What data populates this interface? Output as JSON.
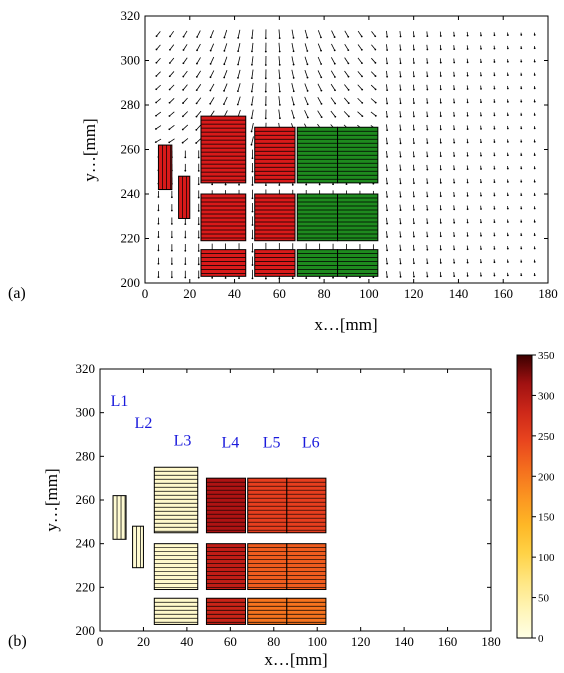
{
  "panels": {
    "a": "(a)",
    "b": "(b)"
  },
  "chart_data": [
    {
      "type": "quiver",
      "panel_label": "(a)",
      "xlabel": "x…[mm]",
      "ylabel": "y…[mm]",
      "xlim": [
        0,
        180
      ],
      "ylim": [
        200,
        320
      ],
      "xticks": [
        0,
        20,
        40,
        60,
        80,
        100,
        120,
        140,
        160,
        180
      ],
      "yticks": [
        200,
        220,
        240,
        260,
        280,
        300,
        320
      ],
      "grid": false,
      "block_colors": {
        "red": "#d91a1a",
        "green": "#1e8a1e"
      },
      "blocks": [
        {
          "x": [
            6,
            12
          ],
          "y": [
            242,
            262
          ],
          "group": "red"
        },
        {
          "x": [
            15,
            20
          ],
          "y": [
            229,
            248
          ],
          "group": "red"
        },
        {
          "x": [
            25,
            45
          ],
          "y": [
            203,
            215
          ],
          "group": "red"
        },
        {
          "x": [
            25,
            45
          ],
          "y": [
            219,
            240
          ],
          "group": "red"
        },
        {
          "x": [
            25,
            45
          ],
          "y": [
            245,
            275
          ],
          "group": "red"
        },
        {
          "x": [
            49,
            67
          ],
          "y": [
            203,
            215
          ],
          "group": "red"
        },
        {
          "x": [
            49,
            67
          ],
          "y": [
            219,
            240
          ],
          "group": "red"
        },
        {
          "x": [
            49,
            67
          ],
          "y": [
            245,
            270
          ],
          "group": "red"
        },
        {
          "x": [
            68,
            86
          ],
          "y": [
            203,
            215
          ],
          "group": "green"
        },
        {
          "x": [
            68,
            86
          ],
          "y": [
            219,
            240
          ],
          "group": "green"
        },
        {
          "x": [
            68,
            86
          ],
          "y": [
            245,
            270
          ],
          "group": "green"
        },
        {
          "x": [
            86,
            104
          ],
          "y": [
            203,
            215
          ],
          "group": "green"
        },
        {
          "x": [
            86,
            104
          ],
          "y": [
            219,
            240
          ],
          "group": "green"
        },
        {
          "x": [
            86,
            104
          ],
          "y": [
            245,
            270
          ],
          "group": "green"
        }
      ]
    },
    {
      "type": "heatmap",
      "panel_label": "(b)",
      "xlabel": "x…[mm]",
      "ylabel": "y…[mm]",
      "xlim": [
        0,
        180
      ],
      "ylim": [
        200,
        320
      ],
      "xticks": [
        0,
        20,
        40,
        60,
        80,
        100,
        120,
        140,
        160,
        180
      ],
      "yticks": [
        200,
        220,
        240,
        260,
        280,
        300,
        320
      ],
      "grid": false,
      "colorbar": {
        "range": [
          0,
          350
        ],
        "ticks": [
          0,
          50,
          100,
          150,
          200,
          250,
          300,
          350
        ]
      },
      "layer_labels": [
        {
          "text": "L1",
          "x": 9,
          "y": 303
        },
        {
          "text": "L2",
          "x": 20,
          "y": 293
        },
        {
          "text": "L3",
          "x": 38,
          "y": 285
        },
        {
          "text": "L4",
          "x": 60,
          "y": 284
        },
        {
          "text": "L5",
          "x": 79,
          "y": 284
        },
        {
          "text": "L6",
          "x": 97,
          "y": 284
        }
      ],
      "blocks": [
        {
          "x": [
            6,
            12
          ],
          "y": [
            242,
            262
          ],
          "value": 15,
          "hatch": "vertical"
        },
        {
          "x": [
            15,
            20
          ],
          "y": [
            229,
            248
          ],
          "value": 15,
          "hatch": "vertical"
        },
        {
          "x": [
            25,
            45
          ],
          "y": [
            203,
            215
          ],
          "value": 20,
          "hatch": "horizontal"
        },
        {
          "x": [
            25,
            45
          ],
          "y": [
            219,
            240
          ],
          "value": 20,
          "hatch": "horizontal"
        },
        {
          "x": [
            25,
            45
          ],
          "y": [
            245,
            275
          ],
          "value": 20,
          "hatch": "horizontal"
        },
        {
          "x": [
            49,
            67
          ],
          "y": [
            203,
            215
          ],
          "value": 285,
          "hatch": "horizontal"
        },
        {
          "x": [
            49,
            67
          ],
          "y": [
            219,
            240
          ],
          "value": 295,
          "hatch": "horizontal"
        },
        {
          "x": [
            49,
            67
          ],
          "y": [
            245,
            270
          ],
          "value": 310,
          "hatch": "horizontal"
        },
        {
          "x": [
            68,
            86
          ],
          "y": [
            203,
            215
          ],
          "value": 205,
          "hatch": "horizontal"
        },
        {
          "x": [
            68,
            86
          ],
          "y": [
            219,
            240
          ],
          "value": 225,
          "hatch": "horizontal"
        },
        {
          "x": [
            68,
            86
          ],
          "y": [
            245,
            270
          ],
          "value": 250,
          "hatch": "horizontal"
        },
        {
          "x": [
            86,
            104
          ],
          "y": [
            203,
            215
          ],
          "value": 205,
          "hatch": "horizontal"
        },
        {
          "x": [
            86,
            104
          ],
          "y": [
            219,
            240
          ],
          "value": 225,
          "hatch": "horizontal"
        },
        {
          "x": [
            86,
            104
          ],
          "y": [
            245,
            270
          ],
          "value": 250,
          "hatch": "horizontal"
        }
      ]
    }
  ]
}
